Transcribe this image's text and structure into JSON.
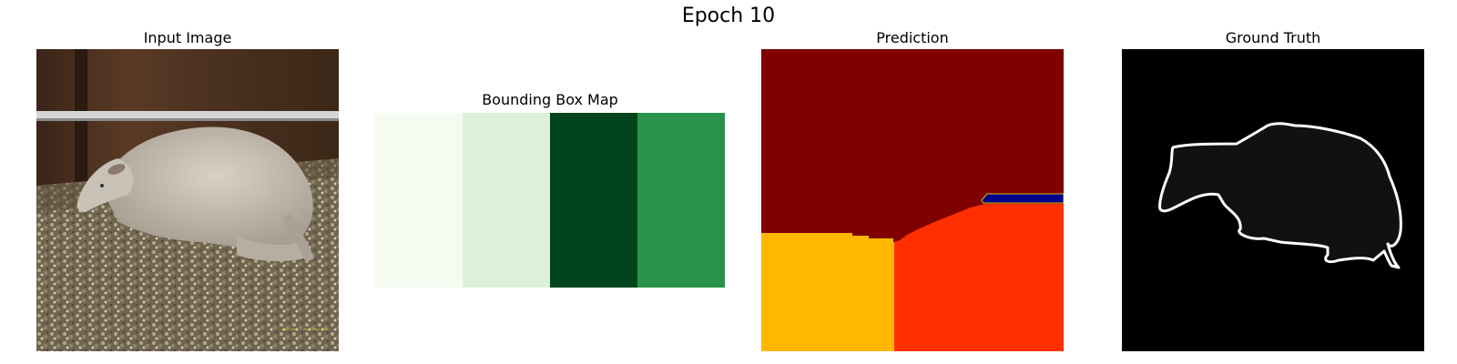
{
  "figure": {
    "title": "Epoch 10"
  },
  "panels": [
    {
      "id": "input",
      "title": "Input Image"
    },
    {
      "id": "bbox",
      "title": "Bounding Box Map",
      "cell_colors": [
        "#f5fbf1",
        "#dcf1d7",
        "#00441b",
        "#2a924a"
      ]
    },
    {
      "id": "prediction",
      "title": "Prediction",
      "colors": {
        "background": "#800000",
        "region_yellow": "#ffb700",
        "region_red": "#ff2f00",
        "thin_stripe": "#00008f",
        "stripe_edge": "#c8c800"
      }
    },
    {
      "id": "ground_truth",
      "title": "Ground Truth",
      "colors": {
        "background": "#000000",
        "fill": "#111111",
        "outline": "#ffffff"
      }
    }
  ]
}
